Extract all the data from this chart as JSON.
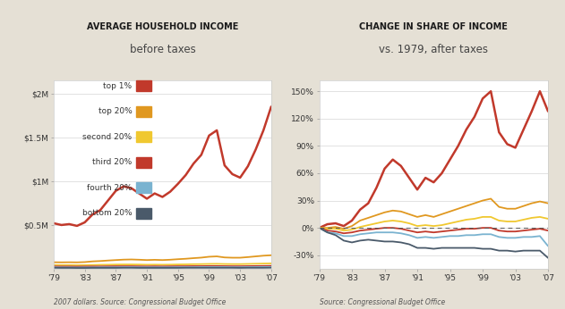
{
  "years": [
    1979,
    1980,
    1981,
    1982,
    1983,
    1984,
    1985,
    1986,
    1987,
    1988,
    1989,
    1990,
    1991,
    1992,
    1993,
    1994,
    1995,
    1996,
    1997,
    1998,
    1999,
    2000,
    2001,
    2002,
    2003,
    2004,
    2005,
    2006,
    2007
  ],
  "left_top1": [
    0.52,
    0.5,
    0.51,
    0.49,
    0.53,
    0.62,
    0.67,
    0.78,
    0.89,
    0.94,
    0.92,
    0.86,
    0.8,
    0.86,
    0.82,
    0.88,
    0.97,
    1.07,
    1.2,
    1.3,
    1.52,
    1.58,
    1.18,
    1.08,
    1.04,
    1.17,
    1.36,
    1.58,
    1.85
  ],
  "left_top20": [
    0.075,
    0.074,
    0.075,
    0.074,
    0.077,
    0.085,
    0.089,
    0.095,
    0.1,
    0.105,
    0.107,
    0.104,
    0.1,
    0.103,
    0.1,
    0.104,
    0.11,
    0.115,
    0.122,
    0.128,
    0.138,
    0.142,
    0.13,
    0.127,
    0.127,
    0.134,
    0.142,
    0.15,
    0.155
  ],
  "left_second20": [
    0.043,
    0.042,
    0.042,
    0.041,
    0.042,
    0.044,
    0.046,
    0.047,
    0.049,
    0.05,
    0.05,
    0.049,
    0.047,
    0.048,
    0.047,
    0.048,
    0.05,
    0.051,
    0.053,
    0.054,
    0.056,
    0.057,
    0.055,
    0.054,
    0.054,
    0.056,
    0.058,
    0.06,
    0.062
  ],
  "left_third20": [
    0.028,
    0.027,
    0.027,
    0.026,
    0.027,
    0.028,
    0.028,
    0.029,
    0.03,
    0.03,
    0.03,
    0.029,
    0.028,
    0.029,
    0.028,
    0.029,
    0.03,
    0.03,
    0.031,
    0.031,
    0.032,
    0.032,
    0.031,
    0.03,
    0.03,
    0.031,
    0.032,
    0.033,
    0.034
  ],
  "left_fourth20": [
    0.018,
    0.017,
    0.017,
    0.016,
    0.017,
    0.017,
    0.018,
    0.018,
    0.018,
    0.019,
    0.019,
    0.018,
    0.018,
    0.018,
    0.018,
    0.018,
    0.019,
    0.019,
    0.019,
    0.02,
    0.02,
    0.02,
    0.02,
    0.019,
    0.019,
    0.02,
    0.02,
    0.021,
    0.021
  ],
  "left_bottom20": [
    0.012,
    0.011,
    0.011,
    0.01,
    0.01,
    0.011,
    0.011,
    0.011,
    0.011,
    0.012,
    0.012,
    0.011,
    0.011,
    0.011,
    0.011,
    0.011,
    0.011,
    0.012,
    0.012,
    0.012,
    0.012,
    0.012,
    0.012,
    0.012,
    0.011,
    0.012,
    0.012,
    0.012,
    0.013
  ],
  "right_top1": [
    0,
    4,
    5,
    2,
    8,
    20,
    27,
    44,
    65,
    75,
    68,
    55,
    42,
    55,
    50,
    60,
    75,
    90,
    108,
    122,
    142,
    150,
    105,
    92,
    88,
    108,
    128,
    150,
    128
  ],
  "right_top20": [
    0,
    0,
    1,
    -1,
    2,
    8,
    11,
    14,
    17,
    19,
    18,
    15,
    12,
    14,
    12,
    15,
    18,
    21,
    24,
    27,
    30,
    32,
    23,
    21,
    21,
    24,
    27,
    29,
    27
  ],
  "right_second20": [
    0,
    -1,
    -1,
    -3,
    -2,
    1,
    3,
    5,
    7,
    8,
    7,
    5,
    2,
    3,
    2,
    3,
    5,
    7,
    9,
    10,
    12,
    12,
    8,
    7,
    7,
    9,
    11,
    12,
    10
  ],
  "right_third20": [
    0,
    -3,
    -4,
    -6,
    -5,
    -3,
    -2,
    -1,
    0,
    0,
    -1,
    -3,
    -5,
    -4,
    -5,
    -4,
    -3,
    -2,
    -1,
    -1,
    0,
    0,
    -3,
    -4,
    -4,
    -3,
    -2,
    -1,
    -3
  ],
  "right_fourth20": [
    0,
    -5,
    -6,
    -9,
    -9,
    -7,
    -6,
    -5,
    -5,
    -5,
    -6,
    -8,
    -11,
    -10,
    -11,
    -10,
    -9,
    -9,
    -8,
    -8,
    -7,
    -7,
    -10,
    -11,
    -11,
    -10,
    -10,
    -9,
    -20
  ],
  "right_bottom20": [
    0,
    -5,
    -8,
    -14,
    -16,
    -14,
    -13,
    -14,
    -15,
    -15,
    -16,
    -18,
    -22,
    -22,
    -23,
    -22,
    -22,
    -22,
    -22,
    -22,
    -23,
    -23,
    -25,
    -25,
    -26,
    -25,
    -25,
    -25,
    -33
  ],
  "bg_color": "#e5e0d5",
  "plot_bg": "#ffffff",
  "color_top1": "#c1392b",
  "color_top20": "#e09820",
  "color_second20": "#f0c830",
  "color_third20": "#c1392b",
  "color_fourth20": "#7ab3d0",
  "color_bottom20": "#4a5a6a",
  "title1_bold": "AVERAGE HOUSEHOLD INCOME",
  "title1_sub": "before taxes",
  "title2_bold": "CHANGE IN SHARE OF INCOME",
  "title2_sub": "vs. 1979, after taxes",
  "source1": "2007 dollars. Source: Congressional Budget Office",
  "source2": "Source: Congressional Budget Office",
  "yticks_left": [
    0.5,
    1.0,
    1.5,
    2.0
  ],
  "ylabels_left": [
    "$0.5M",
    "$1M",
    "$1.5M",
    "$2M"
  ],
  "yticks_right": [
    -30,
    0,
    30,
    60,
    90,
    120,
    150
  ],
  "ylabels_right": [
    "-30%",
    "0%",
    "30%",
    "60%",
    "90%",
    "120%",
    "150%"
  ],
  "xtick_years": [
    1979,
    1983,
    1987,
    1991,
    1995,
    1999,
    2003,
    2007
  ],
  "xlabels": [
    "'79",
    "'83",
    "'87",
    "'91",
    "'95",
    "'99",
    "'03",
    "'07"
  ],
  "legend_items": [
    "top 1%",
    "top 20%",
    "second 20%",
    "third 20%",
    "fourth 20%",
    "bottom 20%"
  ]
}
